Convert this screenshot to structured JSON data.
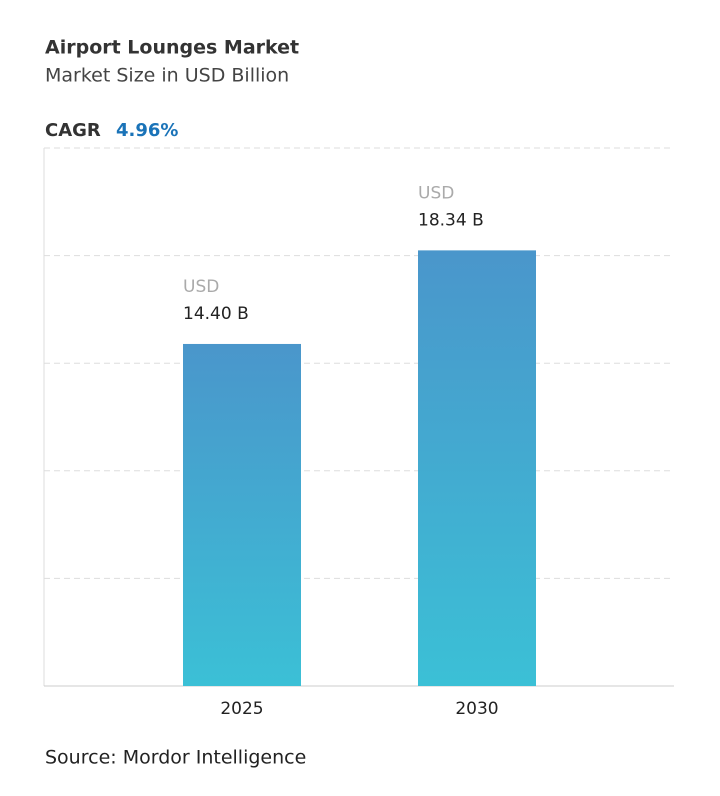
{
  "chart_data": {
    "type": "bar",
    "title": "Airport Lounges Market",
    "subtitle": "Market Size in USD Billion",
    "cagr_label": "CAGR",
    "cagr": "4.96%",
    "categories": [
      "2025",
      "2030"
    ],
    "values": [
      14.4,
      18.34
    ],
    "value_labels": [
      "14.40 B",
      "18.34 B"
    ],
    "value_label_unit": "USD",
    "color_top": "#4a96cb",
    "color_bottom": "#3bc0d6",
    "ylim": [
      0,
      22.65
    ],
    "grid": true,
    "source": "Source: Mordor Intelligence"
  }
}
